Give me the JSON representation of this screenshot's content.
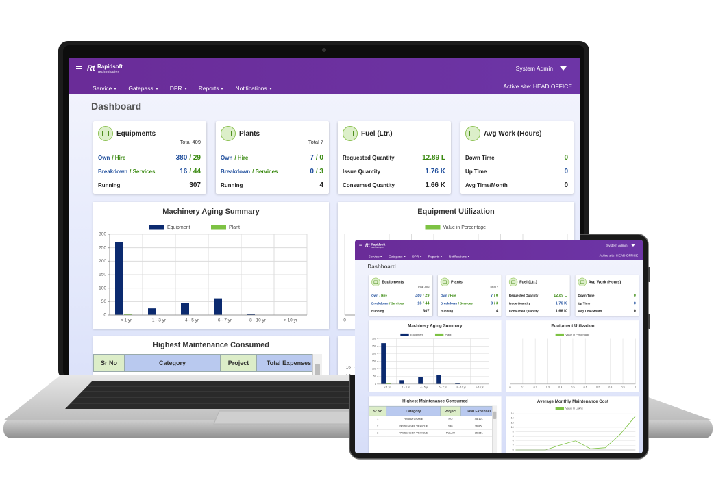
{
  "header": {
    "logo_mark": "Rt",
    "logo": "Rapidsoft",
    "logo_sub": "Technologies",
    "user": "System Admin",
    "active_site": "Active site: HEAD OFFICE",
    "menu": [
      "Service",
      "Gatepass",
      "DPR",
      "Reports",
      "Notifications"
    ]
  },
  "page_title": "Dashboard",
  "cards": [
    {
      "title": "Equipments",
      "total": "Total 409",
      "rows": [
        {
          "label": [
            "Own",
            "/ Hire"
          ],
          "value": [
            "380",
            "/ 29"
          ]
        },
        {
          "label": [
            "Breakdown",
            "/ Services"
          ],
          "value": [
            "16",
            "/ 44"
          ]
        },
        {
          "label": [
            "Running"
          ],
          "value": [
            "307"
          ],
          "value_color": "#222222"
        }
      ]
    },
    {
      "title": "Plants",
      "total": "Total 7",
      "rows": [
        {
          "label": [
            "Own",
            "/ Hire"
          ],
          "value": [
            "7",
            "/ 0"
          ]
        },
        {
          "label": [
            "Breakdown",
            "/ Services"
          ],
          "value": [
            "0",
            "/ 3"
          ]
        },
        {
          "label": [
            "Running"
          ],
          "value": [
            "4"
          ],
          "value_color": "#222222"
        }
      ]
    },
    {
      "title": "Fuel (Ltr.)",
      "rows": [
        {
          "label": [
            "Requested Quantity"
          ],
          "value": [
            "12.89 L"
          ],
          "value_color": "#3b8a12"
        },
        {
          "label": [
            "Issue Quantity"
          ],
          "value": [
            "1.76 K"
          ],
          "value_color": "#1f4e9c"
        },
        {
          "label": [
            "Consumed Quantity"
          ],
          "value": [
            "1.66 K"
          ],
          "value_color": "#222222"
        }
      ]
    },
    {
      "title": "Avg Work (Hours)",
      "rows": [
        {
          "label": [
            "Down Time"
          ],
          "value": [
            "0"
          ],
          "value_color": "#3b8a12"
        },
        {
          "label": [
            "Up Time"
          ],
          "value": [
            "0"
          ],
          "value_color": "#1f4e9c"
        },
        {
          "label": [
            "Avg Time/Month"
          ],
          "value": [
            "0"
          ],
          "value_color": "#222222"
        }
      ]
    }
  ],
  "table": {
    "title": "Highest Maintenance Consumed",
    "columns": [
      "Sr No",
      "Category",
      "Project",
      "Total Expenses"
    ],
    "rows": [
      [
        "1",
        "HYDRA CRANE",
        "HO",
        "45.12L"
      ],
      [
        "2",
        "PASSENGER VEHICLE",
        "Site",
        "36.85L"
      ],
      [
        "3",
        "PASSENGER VEHICLE",
        "PULAU",
        "36.35L"
      ]
    ]
  },
  "chart_data": [
    {
      "type": "bar",
      "title": "Machinery Aging Summary",
      "categories": [
        "< 1 yr",
        "1 - 3 yr",
        "4 - 5 yr",
        "6 - 7 yr",
        "8 - 10 yr",
        "> 10 yr"
      ],
      "series": [
        {
          "name": "Equipment",
          "color": "#0b2a6f",
          "values": [
            270,
            25,
            45,
            62,
            5,
            0
          ]
        },
        {
          "name": "Plant",
          "color": "#7dc243",
          "values": [
            4,
            0,
            0,
            0,
            0,
            0
          ]
        }
      ],
      "ylim": [
        0,
        300
      ],
      "yticks": [
        0,
        50,
        100,
        150,
        200,
        250,
        300
      ],
      "grid": true,
      "legend": "top"
    },
    {
      "type": "hbar",
      "title": "Equipment Utilization",
      "categories": [],
      "series": [
        {
          "name": "Value in Percentage",
          "color": "#7dc243",
          "values": []
        }
      ],
      "xlim": [
        0,
        1
      ],
      "xticks": [
        0,
        0.1,
        0.2,
        0.3,
        0.4,
        0.5,
        0.6,
        0.7,
        0.8,
        0.9,
        1
      ],
      "grid": true,
      "legend": "top"
    },
    {
      "type": "line",
      "title": "Average Monthly Maintenance Cost",
      "series": [
        {
          "name": "Value in Lakhs",
          "color": "#7dc243",
          "values": [
            0,
            0,
            0,
            2.2,
            4,
            0.5,
            1,
            7,
            15
          ]
        }
      ],
      "ylim": [
        0,
        16
      ],
      "yticks": [
        0,
        2,
        4,
        6,
        8,
        10,
        12,
        14,
        16
      ],
      "grid": true,
      "legend": "top"
    }
  ]
}
